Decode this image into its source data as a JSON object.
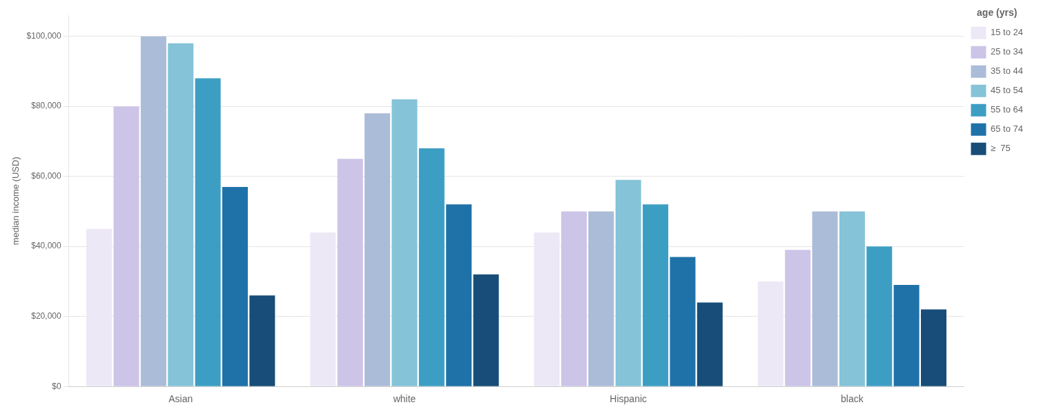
{
  "chart_data": {
    "type": "bar",
    "categories": [
      "Asian",
      "white",
      "Hispanic",
      "black"
    ],
    "series": [
      {
        "name": "15 to 24",
        "color": "#ede8f5",
        "values": [
          45000,
          44000,
          44000,
          30000
        ]
      },
      {
        "name": "25 to 34",
        "color": "#ccc5e8",
        "values": [
          80000,
          65000,
          50000,
          39000
        ]
      },
      {
        "name": "35 to 44",
        "color": "#abbcd8",
        "values": [
          100000,
          78000,
          50000,
          50000
        ]
      },
      {
        "name": "45 to 54",
        "color": "#85c3d8",
        "values": [
          98000,
          82000,
          59000,
          50000
        ]
      },
      {
        "name": "55 to 64",
        "color": "#3d9ec4",
        "values": [
          88000,
          68000,
          52000,
          40000
        ]
      },
      {
        "name": "65 to 74",
        "color": "#1e72a8",
        "values": [
          57000,
          52000,
          37000,
          29000
        ]
      },
      {
        "name": "≥  75",
        "color": "#174d78",
        "values": [
          26000,
          32000,
          24000,
          22000
        ]
      }
    ],
    "ylabel": "median income (USD)",
    "legend_title": "age (yrs)",
    "ylim": [
      0,
      106000
    ],
    "yticks": [
      {
        "value": 0,
        "label": "$0"
      },
      {
        "value": 20000,
        "label": "$20,000"
      },
      {
        "value": 40000,
        "label": "$40,000"
      },
      {
        "value": 60000,
        "label": "$60,000"
      },
      {
        "value": 80000,
        "label": "$80,000"
      },
      {
        "value": 100000,
        "label": "$100,000"
      }
    ],
    "grid": true,
    "legend": "right"
  }
}
